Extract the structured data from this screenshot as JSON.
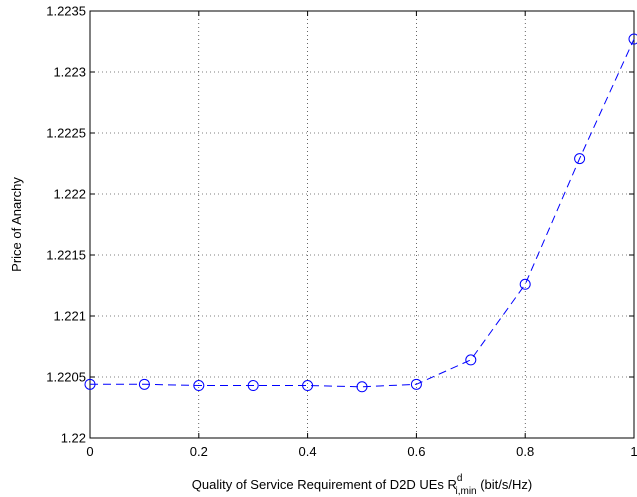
{
  "chart_data": {
    "type": "line",
    "xlabel": {
      "prefix": "Quality of Service Requirement of D2D UEs R",
      "superscript": "d",
      "subscript": "i,min",
      "suffix": " (bit/s/Hz)"
    },
    "ylabel": "Price of Anarchy",
    "xlim": [
      0,
      1
    ],
    "ylim": [
      1.22,
      1.2235
    ],
    "x_ticks": [
      "0",
      "0.2",
      "0.4",
      "0.6",
      "0.8",
      "1"
    ],
    "y_ticks": [
      "1.22",
      "1.2205",
      "1.221",
      "1.2215",
      "1.222",
      "1.2225",
      "1.223",
      "1.2235"
    ],
    "grid": true,
    "series": [
      {
        "color": "#0000ff",
        "line_style": "dashed",
        "marker": "circle",
        "x": [
          0,
          0.1,
          0.2,
          0.3,
          0.4,
          0.5,
          0.6,
          0.7,
          0.8,
          0.9,
          1.0
        ],
        "y": [
          1.22044,
          1.22044,
          1.22043,
          1.22043,
          1.22043,
          1.22042,
          1.22044,
          1.22064,
          1.22126,
          1.22229,
          1.22327
        ]
      }
    ]
  }
}
